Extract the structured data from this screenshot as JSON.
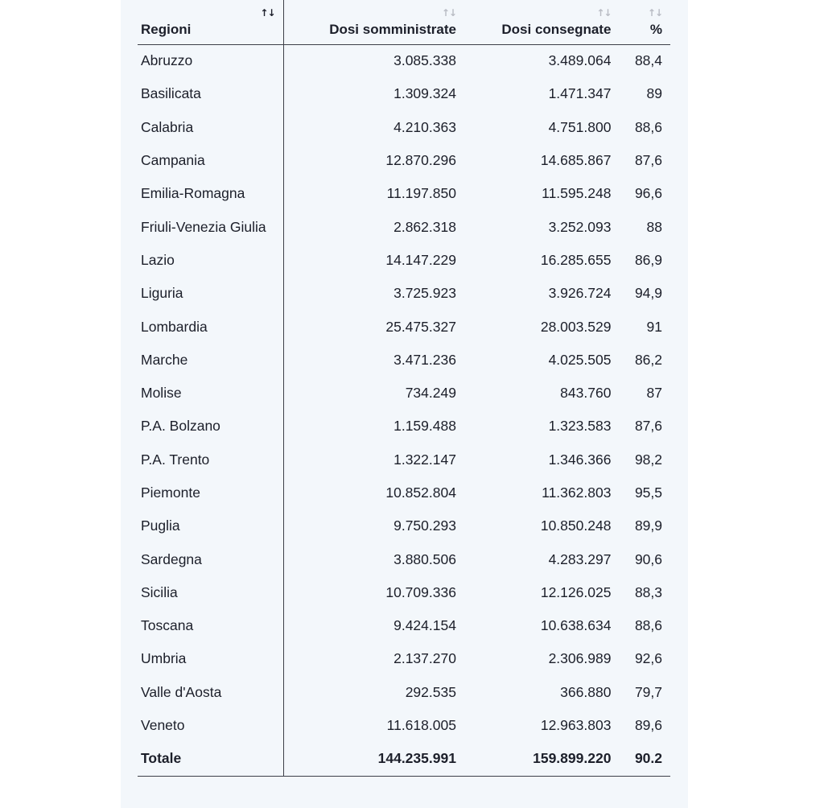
{
  "table": {
    "headers": {
      "region": "Regioni",
      "administered": "Dosi somministrate",
      "delivered": "Dosi consegnate",
      "percent": "%"
    },
    "sort_glyph": "↑↓",
    "rows": [
      {
        "region": "Abruzzo",
        "administered": "3.085.338",
        "delivered": "3.489.064",
        "percent": "88,4"
      },
      {
        "region": "Basilicata",
        "administered": "1.309.324",
        "delivered": "1.471.347",
        "percent": "89"
      },
      {
        "region": "Calabria",
        "administered": "4.210.363",
        "delivered": "4.751.800",
        "percent": "88,6"
      },
      {
        "region": "Campania",
        "administered": "12.870.296",
        "delivered": "14.685.867",
        "percent": "87,6"
      },
      {
        "region": "Emilia-Romagna",
        "administered": "11.197.850",
        "delivered": "11.595.248",
        "percent": "96,6"
      },
      {
        "region": "Friuli-Venezia Giulia",
        "administered": "2.862.318",
        "delivered": "3.252.093",
        "percent": "88"
      },
      {
        "region": "Lazio",
        "administered": "14.147.229",
        "delivered": "16.285.655",
        "percent": "86,9"
      },
      {
        "region": "Liguria",
        "administered": "3.725.923",
        "delivered": "3.926.724",
        "percent": "94,9"
      },
      {
        "region": "Lombardia",
        "administered": "25.475.327",
        "delivered": "28.003.529",
        "percent": "91"
      },
      {
        "region": "Marche",
        "administered": "3.471.236",
        "delivered": "4.025.505",
        "percent": "86,2"
      },
      {
        "region": "Molise",
        "administered": "734.249",
        "delivered": "843.760",
        "percent": "87"
      },
      {
        "region": "P.A. Bolzano",
        "administered": "1.159.488",
        "delivered": "1.323.583",
        "percent": "87,6"
      },
      {
        "region": "P.A. Trento",
        "administered": "1.322.147",
        "delivered": "1.346.366",
        "percent": "98,2"
      },
      {
        "region": "Piemonte",
        "administered": "10.852.804",
        "delivered": "11.362.803",
        "percent": "95,5"
      },
      {
        "region": "Puglia",
        "administered": "9.750.293",
        "delivered": "10.850.248",
        "percent": "89,9"
      },
      {
        "region": "Sardegna",
        "administered": "3.880.506",
        "delivered": "4.283.297",
        "percent": "90,6"
      },
      {
        "region": "Sicilia",
        "administered": "10.709.336",
        "delivered": "12.126.025",
        "percent": "88,3"
      },
      {
        "region": "Toscana",
        "administered": "9.424.154",
        "delivered": "10.638.634",
        "percent": "88,6"
      },
      {
        "region": "Umbria",
        "administered": "2.137.270",
        "delivered": "2.306.989",
        "percent": "92,6"
      },
      {
        "region": "Valle d'Aosta",
        "administered": "292.535",
        "delivered": "366.880",
        "percent": "79,7"
      },
      {
        "region": "Veneto",
        "administered": "11.618.005",
        "delivered": "12.963.803",
        "percent": "89,6"
      }
    ],
    "total": {
      "region": "Totale",
      "administered": "144.235.991",
      "delivered": "159.899.220",
      "percent": "90.2"
    }
  },
  "colors": {
    "panel_background": "#f3f7fb",
    "text": "#1c1f2a",
    "sort_inactive": "#b9bcc4",
    "rule": "#3c3f48"
  }
}
